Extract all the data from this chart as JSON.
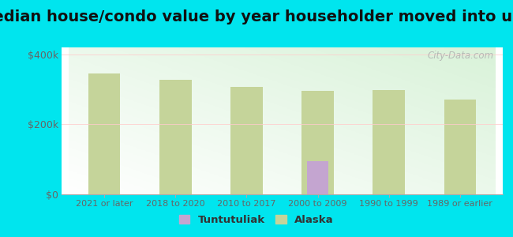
{
  "title": "Median house/condo value by year householder moved into unit",
  "categories": [
    "2021 or later",
    "2018 to 2020",
    "2010 to 2017",
    "2000 to 2009",
    "1990 to 1999",
    "1989 or earlier"
  ],
  "alaska_values": [
    345000,
    328000,
    308000,
    295000,
    298000,
    272000
  ],
  "tuntutuliak_values": [
    0,
    0,
    0,
    95000,
    0,
    0
  ],
  "alaska_color": "#c5d49a",
  "tuntutuliak_color": "#c4a5d0",
  "background_outer": "#00e5ee",
  "title_fontsize": 14,
  "tick_color": "#666666",
  "ylabel_ticks": [
    0,
    200000,
    400000
  ],
  "ylabel_labels": [
    "$0",
    "$200k",
    "$400k"
  ],
  "ylim": [
    0,
    420000
  ],
  "watermark": "City-Data.com",
  "legend_labels": [
    "Tuntutuliak",
    "Alaska"
  ]
}
